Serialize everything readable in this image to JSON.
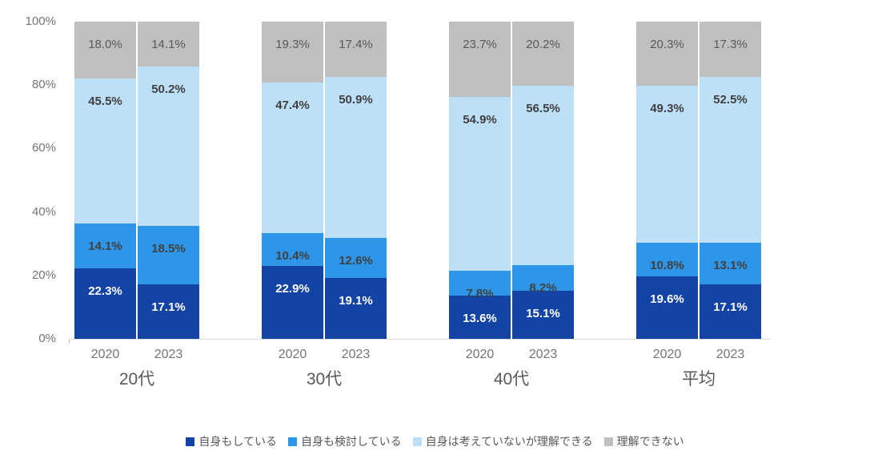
{
  "chart_data": {
    "type": "bar",
    "stacked": true,
    "percent_stacked": true,
    "title": "",
    "groups": [
      "20代",
      "30代",
      "40代",
      "平均"
    ],
    "x_sublabels": [
      "2020",
      "2023"
    ],
    "y_ticks": [
      "100%",
      "80%",
      "60%",
      "40%",
      "20%",
      "0%"
    ],
    "ylim": [
      0,
      100
    ],
    "grid": false,
    "legend_position": "bottom",
    "axis_line_color": "#D9D9D9",
    "series": [
      {
        "name": "自身もしている",
        "color": "#1243A5",
        "label_color": "#FFFFFF",
        "label_bold": true,
        "values": [
          [
            22.3,
            17.1
          ],
          [
            22.9,
            19.1
          ],
          [
            13.6,
            15.1
          ],
          [
            19.6,
            17.1
          ]
        ]
      },
      {
        "name": "自身も検討している",
        "color": "#2E96E8",
        "label_color": "#404040",
        "label_bold": true,
        "values": [
          [
            14.1,
            18.5
          ],
          [
            10.4,
            12.6
          ],
          [
            7.8,
            8.2
          ],
          [
            10.8,
            13.1
          ]
        ]
      },
      {
        "name": "自身は考えていないが理解できる",
        "color": "#BDDFF7",
        "label_color": "#404040",
        "label_bold": true,
        "values": [
          [
            45.5,
            50.2
          ],
          [
            47.4,
            50.9
          ],
          [
            54.9,
            56.5
          ],
          [
            49.3,
            52.5
          ]
        ]
      },
      {
        "name": "理解できない",
        "color": "#BFBFBF",
        "label_color": "#595959",
        "label_bold": false,
        "values": [
          [
            18.0,
            14.1
          ],
          [
            19.3,
            17.4
          ],
          [
            23.7,
            20.2
          ],
          [
            20.3,
            17.3
          ]
        ]
      }
    ]
  }
}
